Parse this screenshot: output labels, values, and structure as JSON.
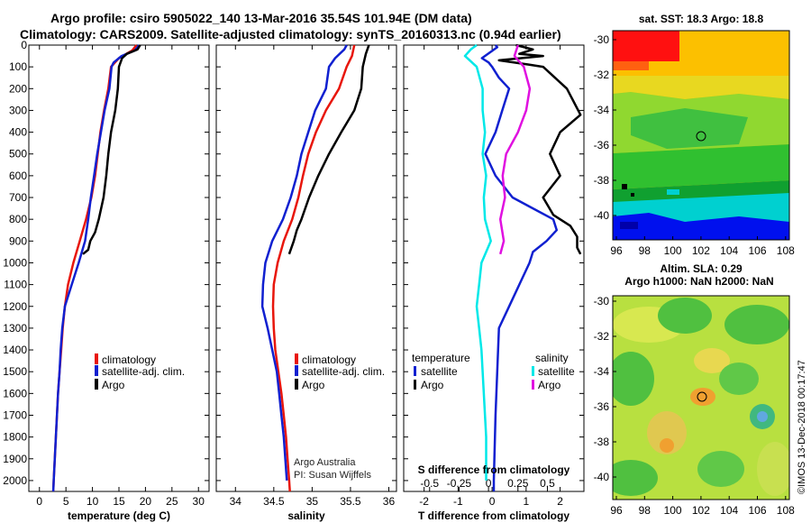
{
  "header": {
    "title_line1": "Argo profile: csiro 5905022_140 13-Mar-2016 35.54S 101.94E (DM data)",
    "title_line2": "Climatology: CARS2009. Satellite-adjusted climatology: synTS_20160313.nc (0.94d earlier)"
  },
  "colors": {
    "climatology": "#e8160c",
    "satellite": "#1020d0",
    "argo": "#000000",
    "salinity_satellite": "#00e8e8",
    "salinity_argo": "#e010e0"
  },
  "chart_data": [
    {
      "type": "line",
      "title": "",
      "xlabel": "temperature (deg C)",
      "ylabel": "",
      "xlim": [
        -2,
        32
      ],
      "ylim": [
        2050,
        0
      ],
      "xticks": [
        "0",
        "5",
        "10",
        "15",
        "20",
        "25",
        "30"
      ],
      "yticks": [
        "0",
        "100",
        "200",
        "300",
        "400",
        "500",
        "600",
        "700",
        "800",
        "900",
        "1000",
        "1100",
        "1200",
        "1300",
        "1400",
        "1500",
        "1600",
        "1700",
        "1800",
        "1900",
        "2000"
      ],
      "legend": [
        "climatology",
        "satellite-adj. clim.",
        "Argo"
      ],
      "series": [
        {
          "name": "climatology",
          "points": [
            [
              18.3,
              0
            ],
            [
              17.5,
              25
            ],
            [
              15,
              60
            ],
            [
              13.5,
              100
            ],
            [
              13,
              200
            ],
            [
              12.2,
              300
            ],
            [
              11.5,
              400
            ],
            [
              11,
              500
            ],
            [
              10.5,
              600
            ],
            [
              9.8,
              700
            ],
            [
              8.8,
              800
            ],
            [
              7.6,
              900
            ],
            [
              6.4,
              1000
            ],
            [
              5.4,
              1100
            ],
            [
              4.8,
              1200
            ],
            [
              4.4,
              1300
            ],
            [
              4.1,
              1400
            ],
            [
              3.8,
              1500
            ],
            [
              3.5,
              1600
            ],
            [
              3.3,
              1700
            ],
            [
              3.1,
              1800
            ],
            [
              2.9,
              1900
            ],
            [
              2.7,
              2000
            ],
            [
              2.6,
              2050
            ]
          ]
        },
        {
          "name": "satellite-adj. clim.",
          "points": [
            [
              18.8,
              0
            ],
            [
              18,
              25
            ],
            [
              15.5,
              50
            ],
            [
              14,
              80
            ],
            [
              13.6,
              100
            ],
            [
              13.2,
              200
            ],
            [
              12.3,
              300
            ],
            [
              11.6,
              400
            ],
            [
              10.9,
              500
            ],
            [
              10.3,
              600
            ],
            [
              9.7,
              700
            ],
            [
              9.2,
              800
            ],
            [
              8.6,
              900
            ],
            [
              7.4,
              1000
            ],
            [
              6.1,
              1100
            ],
            [
              4.8,
              1200
            ],
            [
              4.3,
              1300
            ],
            [
              4.0,
              1400
            ],
            [
              3.8,
              1500
            ],
            [
              3.5,
              1600
            ],
            [
              3.3,
              1700
            ],
            [
              3.1,
              1800
            ],
            [
              2.9,
              1900
            ],
            [
              2.7,
              2000
            ],
            [
              2.6,
              2050
            ]
          ]
        },
        {
          "name": "Argo",
          "points": [
            [
              19,
              0
            ],
            [
              18.5,
              20
            ],
            [
              16.5,
              40
            ],
            [
              15.6,
              60
            ],
            [
              15,
              100
            ],
            [
              14.8,
              200
            ],
            [
              14.3,
              300
            ],
            [
              13.5,
              400
            ],
            [
              13,
              500
            ],
            [
              12.6,
              600
            ],
            [
              12.1,
              700
            ],
            [
              11.2,
              800
            ],
            [
              10.5,
              860
            ],
            [
              9.6,
              900
            ],
            [
              9.2,
              940
            ],
            [
              8.2,
              960
            ]
          ]
        }
      ]
    },
    {
      "type": "line",
      "title": "",
      "xlabel": "salinity",
      "ylabel": "",
      "xlim": [
        33.75,
        36.1
      ],
      "ylim": [
        2050,
        0
      ],
      "xticks": [
        "34",
        "34.5",
        "35",
        "35.5",
        "36"
      ],
      "legend": [
        "climatology",
        "satellite-adj. clim.",
        "Argo"
      ],
      "series": [
        {
          "name": "climatology",
          "points": [
            [
              35.55,
              0
            ],
            [
              35.52,
              50
            ],
            [
              35.45,
              100
            ],
            [
              35.35,
              200
            ],
            [
              35.18,
              300
            ],
            [
              35.05,
              400
            ],
            [
              34.95,
              500
            ],
            [
              34.88,
              600
            ],
            [
              34.82,
              700
            ],
            [
              34.74,
              800
            ],
            [
              34.63,
              900
            ],
            [
              34.55,
              1000
            ],
            [
              34.5,
              1100
            ],
            [
              34.49,
              1200
            ],
            [
              34.5,
              1300
            ],
            [
              34.52,
              1400
            ],
            [
              34.56,
              1500
            ],
            [
              34.6,
              1600
            ],
            [
              34.63,
              1700
            ],
            [
              34.66,
              1800
            ],
            [
              34.68,
              1900
            ],
            [
              34.7,
              2000
            ],
            [
              34.71,
              2050
            ]
          ]
        },
        {
          "name": "satellite-adj. clim.",
          "points": [
            [
              35.45,
              0
            ],
            [
              35.42,
              20
            ],
            [
              35.3,
              60
            ],
            [
              35.22,
              100
            ],
            [
              35.18,
              200
            ],
            [
              35.04,
              300
            ],
            [
              34.95,
              400
            ],
            [
              34.86,
              500
            ],
            [
              34.8,
              600
            ],
            [
              34.72,
              700
            ],
            [
              34.62,
              800
            ],
            [
              34.48,
              900
            ],
            [
              34.39,
              1000
            ],
            [
              34.36,
              1100
            ],
            [
              34.35,
              1200
            ],
            [
              34.42,
              1300
            ],
            [
              34.48,
              1400
            ],
            [
              34.54,
              1500
            ],
            [
              34.57,
              1600
            ],
            [
              34.6,
              1700
            ],
            [
              34.63,
              1800
            ],
            [
              34.65,
              1900
            ],
            [
              34.67,
              2000
            ]
          ]
        },
        {
          "name": "Argo",
          "points": [
            [
              35.74,
              0
            ],
            [
              35.7,
              40
            ],
            [
              35.66,
              100
            ],
            [
              35.64,
              200
            ],
            [
              35.55,
              300
            ],
            [
              35.38,
              400
            ],
            [
              35.22,
              500
            ],
            [
              35.08,
              600
            ],
            [
              34.96,
              700
            ],
            [
              34.86,
              800
            ],
            [
              34.8,
              850
            ],
            [
              34.76,
              900
            ],
            [
              34.7,
              960
            ]
          ]
        }
      ]
    },
    {
      "type": "line",
      "title": "",
      "xlabel": "T difference from climatology",
      "x2label": "S difference from climatology",
      "ylabel": "",
      "xlim": [
        -2.6,
        2.7
      ],
      "x2lim": [
        -0.72,
        0.81
      ],
      "ylim": [
        2050,
        0
      ],
      "xticks": [
        "-2",
        "-1",
        "0",
        "1",
        "2"
      ],
      "x2ticks": [
        "-0.5",
        "-0.25",
        "0",
        "0.25",
        "0.5"
      ],
      "legend_temperature": [
        "temperature",
        "satellite",
        "Argo"
      ],
      "legend_salinity": [
        "salinity",
        "satellite",
        "Argo"
      ],
      "series": [
        {
          "name": "T satellite",
          "points": [
            [
              0.1,
              0
            ],
            [
              0.15,
              10
            ],
            [
              -0.3,
              60
            ],
            [
              -0.1,
              80
            ],
            [
              0,
              100
            ],
            [
              0.2,
              150
            ],
            [
              0.5,
              200
            ],
            [
              0.3,
              300
            ],
            [
              0.1,
              400
            ],
            [
              -0.2,
              500
            ],
            [
              0.1,
              600
            ],
            [
              0.6,
              700
            ],
            [
              1.2,
              750
            ],
            [
              1.8,
              800
            ],
            [
              1.9,
              850
            ],
            [
              1.6,
              900
            ],
            [
              1.2,
              950
            ],
            [
              1.1,
              1000
            ],
            [
              0.8,
              1100
            ],
            [
              0.5,
              1200
            ],
            [
              0.2,
              1300
            ],
            [
              0.15,
              1500
            ],
            [
              0.1,
              1700
            ],
            [
              0.05,
              2000
            ],
            [
              0.05,
              2050
            ]
          ]
        },
        {
          "name": "T Argo",
          "points": [
            [
              0.7,
              0
            ],
            [
              1.2,
              20
            ],
            [
              0.8,
              40
            ],
            [
              1.5,
              50
            ],
            [
              0.2,
              70
            ],
            [
              1.1,
              90
            ],
            [
              1.5,
              100
            ],
            [
              2.2,
              200
            ],
            [
              2.6,
              320
            ],
            [
              2.0,
              400
            ],
            [
              1.7,
              500
            ],
            [
              2.0,
              600
            ],
            [
              1.5,
              700
            ],
            [
              1.8,
              780
            ],
            [
              2.3,
              830
            ],
            [
              2.5,
              880
            ],
            [
              2.5,
              930
            ],
            [
              2.6,
              960
            ]
          ]
        },
        {
          "name": "S satellite",
          "points": [
            [
              -0.1,
              0
            ],
            [
              -0.15,
              20
            ],
            [
              -0.2,
              50
            ],
            [
              -0.1,
              100
            ],
            [
              -0.05,
              200
            ],
            [
              -0.05,
              300
            ],
            [
              -0.03,
              400
            ],
            [
              -0.05,
              500
            ],
            [
              -0.02,
              600
            ],
            [
              -0.04,
              700
            ],
            [
              -0.03,
              800
            ],
            [
              0.02,
              900
            ],
            [
              -0.06,
              1000
            ],
            [
              -0.08,
              1100
            ],
            [
              -0.1,
              1200
            ],
            [
              -0.08,
              1300
            ],
            [
              -0.06,
              1400
            ],
            [
              -0.05,
              1500
            ],
            [
              -0.04,
              1600
            ],
            [
              -0.03,
              1700
            ],
            [
              -0.02,
              1800
            ],
            [
              -0.02,
              1900
            ],
            [
              -0.02,
              2000
            ]
          ]
        },
        {
          "name": "S Argo",
          "points": [
            [
              0.25,
              0
            ],
            [
              0.22,
              50
            ],
            [
              0.3,
              100
            ],
            [
              0.35,
              200
            ],
            [
              0.32,
              300
            ],
            [
              0.25,
              400
            ],
            [
              0.15,
              500
            ],
            [
              0.12,
              600
            ],
            [
              0.14,
              700
            ],
            [
              0.1,
              800
            ],
            [
              0.13,
              900
            ],
            [
              0.1,
              960
            ]
          ]
        }
      ]
    }
  ],
  "legend": {
    "climatology": "climatology",
    "satellite_adj": "satellite-adj. clim.",
    "argo": "Argo",
    "temperature": "temperature",
    "salinity": "salinity",
    "satellite": "satellite"
  },
  "credits": {
    "line1": "Argo Australia",
    "line2": "PI: Susan Wijffels"
  },
  "maps": {
    "sst_title": "sat. SST: 18.3 Argo: 18.8",
    "sla_title1": "Altim. SLA: 0.29",
    "sla_title2": "Argo h1000: NaN h2000: NaN",
    "lat_ticks": [
      "-30",
      "-32",
      "-34",
      "-36",
      "-38",
      "-40"
    ],
    "lon_ticks": [
      "96",
      "98",
      "100",
      "102",
      "104",
      "106",
      "108"
    ],
    "watermark": "©IMOS 13-Dec-2018 00:17:47"
  }
}
